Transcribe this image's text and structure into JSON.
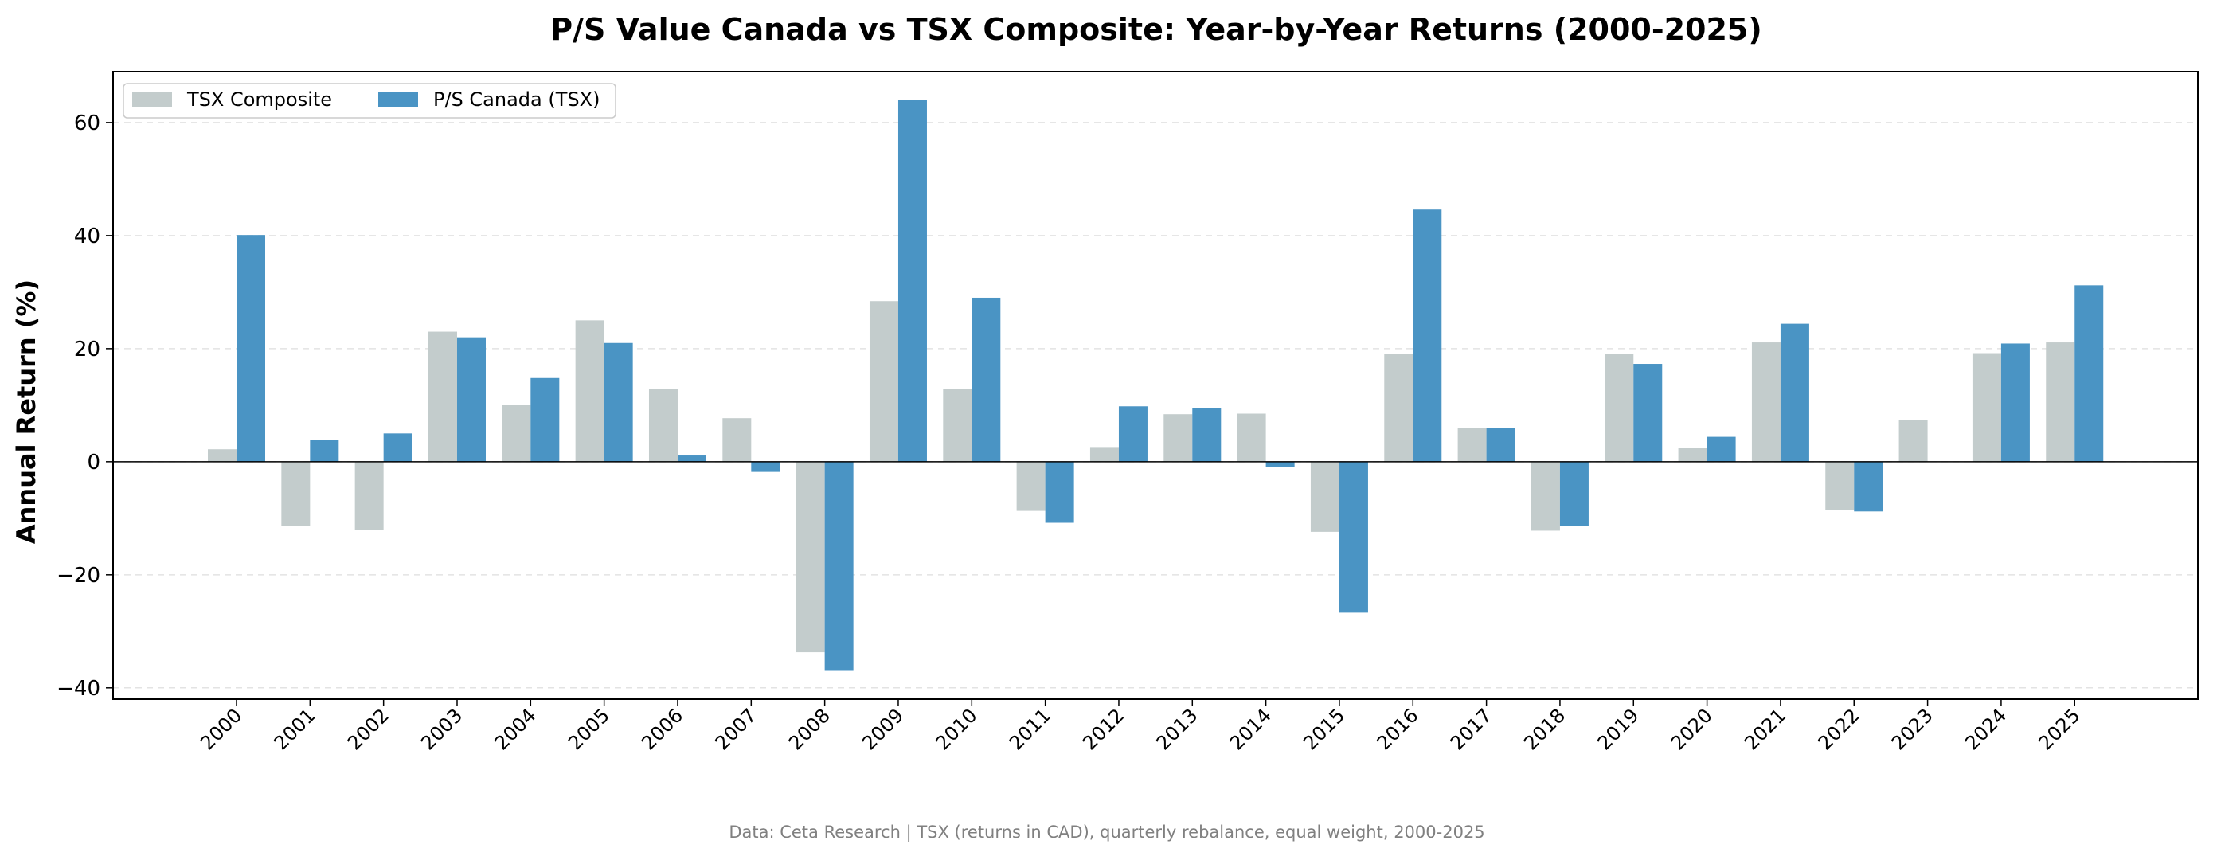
{
  "chart_data": {
    "type": "bar",
    "title": "P/S Value Canada vs TSX Composite: Year-by-Year Returns (2000-2025)",
    "xlabel": "",
    "ylabel": "Annual Return (%)",
    "ylim": [
      -42,
      69
    ],
    "yticks": [
      -40,
      -20,
      0,
      20,
      40,
      60
    ],
    "ytick_labels": [
      "−40",
      "−20",
      "0",
      "20",
      "40",
      "60"
    ],
    "grid": "y-dashed",
    "legend_position": "top-left",
    "categories": [
      "2000",
      "2001",
      "2002",
      "2003",
      "2004",
      "2005",
      "2006",
      "2007",
      "2008",
      "2009",
      "2010",
      "2011",
      "2012",
      "2013",
      "2014",
      "2015",
      "2016",
      "2017",
      "2018",
      "2019",
      "2020",
      "2021",
      "2022",
      "2023",
      "2024",
      "2025"
    ],
    "series": [
      {
        "name": "TSX Composite",
        "color": "#c3cccc",
        "values": [
          2.2,
          -11.4,
          -12.0,
          23.0,
          10.1,
          25.0,
          12.9,
          7.7,
          -33.7,
          28.4,
          12.9,
          -8.7,
          2.6,
          8.4,
          8.5,
          -12.4,
          19.0,
          5.9,
          -12.2,
          19.0,
          2.4,
          21.1,
          -8.5,
          7.4,
          19.2,
          21.1
        ]
      },
      {
        "name": "P/S Canada (TSX)",
        "color": "#4a94c4",
        "values": [
          40.1,
          3.8,
          5.0,
          22.0,
          14.8,
          21.0,
          1.1,
          -1.8,
          -37.0,
          64.0,
          29.0,
          -10.8,
          9.8,
          9.5,
          -1.0,
          -26.7,
          44.6,
          5.9,
          -11.3,
          17.3,
          4.4,
          24.4,
          -8.8,
          0.0,
          20.9,
          31.2
        ]
      }
    ],
    "footnote": "Data: Ceta Research | TSX (returns in CAD), quarterly rebalance, equal weight, 2000-2025"
  }
}
